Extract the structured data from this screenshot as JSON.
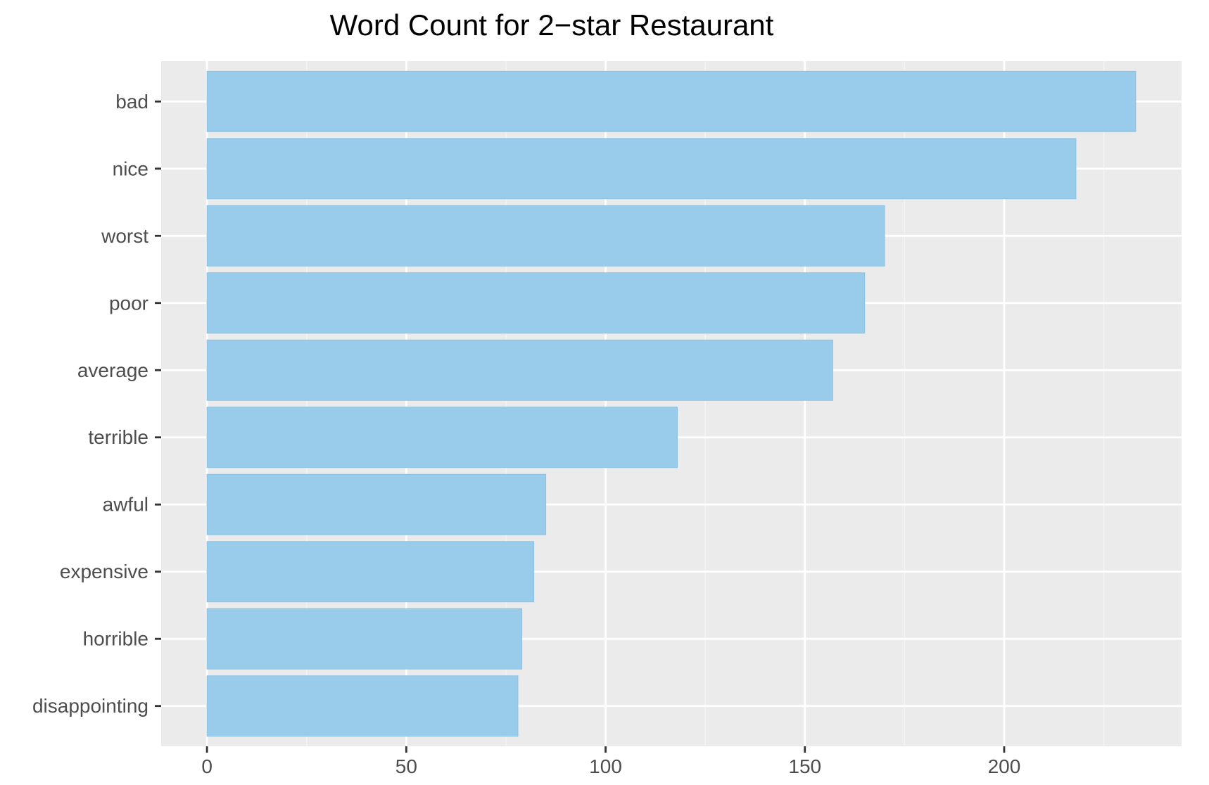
{
  "chart_data": {
    "type": "bar",
    "orientation": "horizontal",
    "title": "Word Count for 2−star Restaurant",
    "xlabel": "",
    "ylabel": "",
    "categories": [
      "bad",
      "nice",
      "worst",
      "poor",
      "average",
      "terrible",
      "awful",
      "expensive",
      "horrible",
      "disappointing"
    ],
    "values": [
      233,
      218,
      170,
      165,
      157,
      118,
      85,
      82,
      79,
      78
    ],
    "xlim": [
      -11.5,
      244.5
    ],
    "x_ticks": [
      0,
      50,
      100,
      150,
      200
    ],
    "x_tick_labels": [
      "0",
      "50",
      "100",
      "150",
      "200"
    ],
    "grid": true,
    "legend": "none",
    "colors": {
      "bar_fill": "#99CCEB",
      "bar_stroke": "#8ec2e2",
      "panel_background": "#EBEBEB",
      "grid_major": "#FFFFFF",
      "grid_minor": "#F5F5F5",
      "axis_text": "#4D4D4D",
      "title_text": "#000000"
    }
  }
}
